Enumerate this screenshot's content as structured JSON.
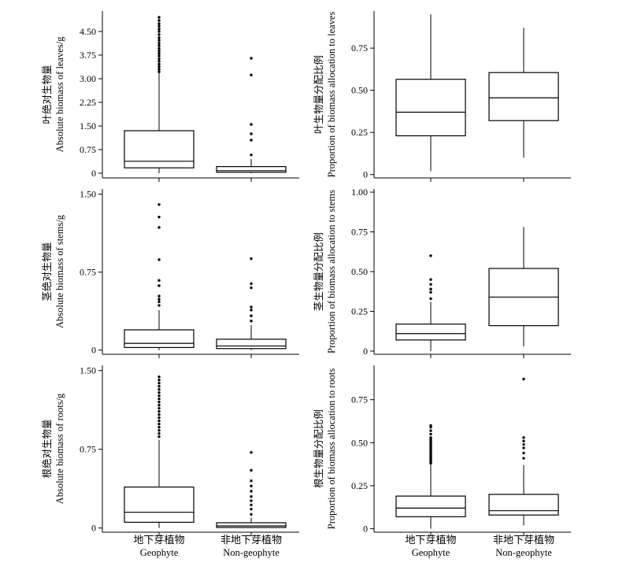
{
  "chart_data": [
    {
      "type": "box",
      "ylabel_cn": "叶绝对生物量",
      "ylabel_en": "Absolute biomass of leaves/g",
      "yticks": [
        "0",
        "0.75",
        "1.50",
        "2.25",
        "3.00",
        "3.75",
        "4.50"
      ],
      "tick_values": [
        0,
        0.75,
        1.5,
        2.25,
        3.0,
        3.75,
        4.5
      ],
      "ylim": [
        -0.15,
        5.15
      ],
      "categories": [
        "Geophyte",
        "Non-geophyte"
      ],
      "boxes": [
        {
          "whisker_low": 0,
          "q1": 0.17,
          "median": 0.38,
          "q3": 1.35,
          "whisker_high": 3.18,
          "outliers": [
            3.22,
            3.3,
            3.38,
            3.46,
            3.55,
            3.63,
            3.72,
            3.8,
            3.88,
            3.96,
            4.05,
            4.13,
            4.22,
            4.3,
            4.4,
            4.5,
            4.58,
            4.67,
            4.75,
            4.85,
            4.95
          ]
        },
        {
          "whisker_low": 0,
          "q1": 0.03,
          "median": 0.08,
          "q3": 0.21,
          "whisker_high": 0.45,
          "outliers": [
            0.58,
            1.05,
            1.25,
            1.55,
            3.12,
            3.65
          ]
        }
      ]
    },
    {
      "type": "box",
      "ylabel_cn": "叶生物量分配比例",
      "ylabel_en": "Proportion of biomass allocation to leaves",
      "yticks": [
        "0",
        "0.25",
        "0.50",
        "0.75"
      ],
      "tick_values": [
        0,
        0.25,
        0.5,
        0.75
      ],
      "ylim": [
        -0.02,
        0.97
      ],
      "categories": [
        "Geophyte",
        "Non-geophyte"
      ],
      "boxes": [
        {
          "whisker_low": 0.02,
          "q1": 0.23,
          "median": 0.37,
          "q3": 0.565,
          "whisker_high": 0.95,
          "outliers": []
        },
        {
          "whisker_low": 0.1,
          "q1": 0.32,
          "median": 0.455,
          "q3": 0.605,
          "whisker_high": 0.87,
          "outliers": []
        }
      ]
    },
    {
      "type": "box",
      "ylabel_cn": "茎绝对生物量",
      "ylabel_en": "Absolute biomass of stems/g",
      "yticks": [
        "0",
        "0.75",
        "1.50"
      ],
      "tick_values": [
        0,
        0.75,
        1.5
      ],
      "ylim": [
        -0.04,
        1.55
      ],
      "categories": [
        "Geophyte",
        "Non-geophyte"
      ],
      "boxes": [
        {
          "whisker_low": 0,
          "q1": 0.025,
          "median": 0.065,
          "q3": 0.195,
          "whisker_high": 0.385,
          "outliers": [
            0.43,
            0.465,
            0.49,
            0.52,
            0.62,
            0.67,
            0.87,
            1.18,
            1.28,
            1.4
          ]
        },
        {
          "whisker_low": 0,
          "q1": 0.015,
          "median": 0.04,
          "q3": 0.105,
          "whisker_high": 0.24,
          "outliers": [
            0.28,
            0.33,
            0.385,
            0.415,
            0.6,
            0.64,
            0.88
          ]
        }
      ]
    },
    {
      "type": "box",
      "ylabel_cn": "茎生物量分配比例",
      "ylabel_en": "Proportion of biomass allocation to stems",
      "yticks": [
        "0",
        "0.25",
        "0.50",
        "0.75",
        "1.00"
      ],
      "tick_values": [
        0,
        0.25,
        0.5,
        0.75,
        1.0
      ],
      "ylim": [
        -0.02,
        1.02
      ],
      "categories": [
        "Geophyte",
        "Non-geophyte"
      ],
      "boxes": [
        {
          "whisker_low": 0,
          "q1": 0.07,
          "median": 0.11,
          "q3": 0.17,
          "whisker_high": 0.31,
          "outliers": [
            0.33,
            0.37,
            0.39,
            0.42,
            0.45,
            0.6
          ]
        },
        {
          "whisker_low": 0.03,
          "q1": 0.16,
          "median": 0.34,
          "q3": 0.52,
          "whisker_high": 0.78,
          "outliers": []
        }
      ]
    },
    {
      "type": "box",
      "ylabel_cn": "根绝对生物量",
      "ylabel_en": "Absolute biomass of roots/g",
      "yticks": [
        "0",
        "0.75",
        "1.50"
      ],
      "tick_values": [
        0,
        0.75,
        1.5
      ],
      "ylim": [
        -0.04,
        1.55
      ],
      "categories": [
        "Geophyte",
        "Non-geophyte"
      ],
      "boxes": [
        {
          "whisker_low": 0,
          "q1": 0.055,
          "median": 0.15,
          "q3": 0.39,
          "whisker_high": 0.84,
          "outliers": [
            0.87,
            0.9,
            0.93,
            0.96,
            0.99,
            1.02,
            1.05,
            1.08,
            1.11,
            1.14,
            1.17,
            1.2,
            1.23,
            1.26,
            1.29,
            1.32,
            1.35,
            1.38,
            1.41,
            1.44
          ]
        },
        {
          "whisker_low": 0,
          "q1": 0.005,
          "median": 0.02,
          "q3": 0.05,
          "whisker_high": 0.1,
          "outliers": [
            0.13,
            0.18,
            0.22,
            0.26,
            0.3,
            0.35,
            0.4,
            0.45,
            0.55,
            0.72
          ]
        }
      ]
    },
    {
      "type": "box",
      "ylabel_cn": "根生物量分配比例",
      "ylabel_en": "Proportion of biomass allocation to roots",
      "yticks": [
        "0",
        "0.25",
        "0.50",
        "0.75"
      ],
      "tick_values": [
        0,
        0.25,
        0.5,
        0.75
      ],
      "ylim": [
        -0.02,
        0.95
      ],
      "categories": [
        "Geophyte",
        "Non-geophyte"
      ],
      "boxes": [
        {
          "whisker_low": 0,
          "q1": 0.07,
          "median": 0.12,
          "q3": 0.19,
          "whisker_high": 0.37,
          "outliers": [
            0.38,
            0.39,
            0.4,
            0.41,
            0.42,
            0.43,
            0.44,
            0.45,
            0.46,
            0.47,
            0.48,
            0.49,
            0.5,
            0.51,
            0.52,
            0.53,
            0.55,
            0.57,
            0.59,
            0.6
          ]
        },
        {
          "whisker_low": 0.02,
          "q1": 0.08,
          "median": 0.105,
          "q3": 0.2,
          "whisker_high": 0.37,
          "outliers": [
            0.41,
            0.44,
            0.47,
            0.49,
            0.51,
            0.53,
            0.87
          ]
        }
      ]
    }
  ],
  "x_categories": [
    {
      "cn": "地下芽植物",
      "en": "Geophyte"
    },
    {
      "cn": "非地下芽植物",
      "en": "Non-geophyte"
    }
  ]
}
